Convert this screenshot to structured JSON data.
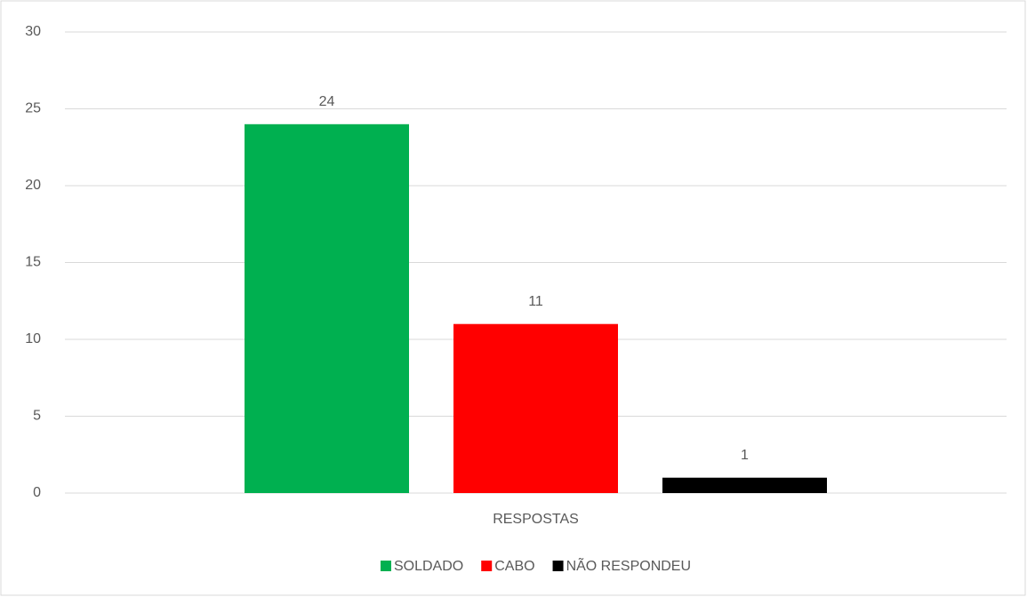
{
  "chart_data": {
    "type": "bar",
    "categories": [
      "RESPOSTAS"
    ],
    "series": [
      {
        "name": "SOLDADO",
        "color": "#00b050",
        "values": [
          24
        ]
      },
      {
        "name": "CABO",
        "color": "#ff0000",
        "values": [
          11
        ]
      },
      {
        "name": "NÃO RESPONDEU",
        "color": "#000000",
        "values": [
          1
        ]
      }
    ],
    "ylim": [
      0,
      30
    ],
    "yticks": [
      0,
      5,
      10,
      15,
      20,
      25,
      30
    ],
    "grid": true,
    "legend": "bottom"
  }
}
